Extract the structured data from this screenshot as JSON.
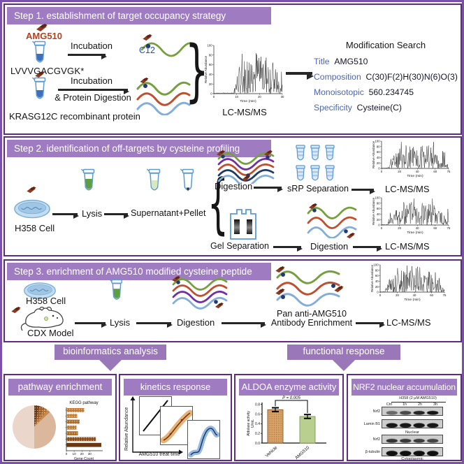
{
  "colors": {
    "banner_purple": "#9f7cc1",
    "box_border_purple": "#5e2c80",
    "outer_border_purple": "#7b50a8",
    "amg510_red": "#b5401c",
    "field_label_blue": "#4b67ae",
    "c12_blue": "#2b4fa3",
    "wave_green": "#76a03e",
    "wave_red": "#bf4f2e",
    "wave_blue": "#82aed8",
    "wave_purple": "#7030a0",
    "wave_navy": "#1f3a68",
    "vehicle_bar": "#d9a268",
    "amg510_bar": "#b8cf90"
  },
  "step1": {
    "title": "Step 1. establishment of target occupancy strategy",
    "amg510": "AMG510",
    "peptide": "LVVVGACGVGK*",
    "incubation1": "Incubation",
    "c12": "C12",
    "incubation2_line1": "Incubation",
    "incubation2_line2": "& Protein Digestion",
    "protein": "KRASG12C recombinant protein",
    "lcms": "LC-MS/MS",
    "mod_search": {
      "title": "Modification Search",
      "rows": [
        {
          "label": "Title",
          "value": "AMG510"
        },
        {
          "label": "Composition",
          "value": "C(30)F(2)H(30)N(6)O(3)"
        },
        {
          "label": "Monoisotopic",
          "value": "560.234745"
        },
        {
          "label": "Specificity",
          "value": "Cysteine(C)"
        }
      ]
    }
  },
  "step2": {
    "title": "Step 2. identification of off-targets by cysteine profiling",
    "cell": "H358 Cell",
    "lysis": "Lysis",
    "supernatant": "Supernatant+Pellet",
    "digestion_top": "Digestion",
    "srp": "sRP Separation",
    "lcms_top": "LC-MS/MS",
    "gel": "Gel Separation",
    "digestion_bottom": "Digestion",
    "lcms_bottom": "LC-MS/MS"
  },
  "step3": {
    "title": "Step 3. enrichment of AMG510 modified cysteine peptide",
    "cell": "H358 Cell",
    "cdx": "CDX Model",
    "lysis": "Lysis",
    "digestion": "Digestion",
    "enrichment_line1": "Pan anti-AMG510",
    "enrichment_line2": "Antibody Enrichment",
    "lcms": "LC-MS/MS"
  },
  "ribbons": {
    "left": "bioinformatics analysis",
    "right": "functional response"
  },
  "chromatograms": {
    "step1": {
      "ylabel": "Relative Abundance",
      "xlabel": "Time (min)",
      "xticks": [
        0,
        10,
        20,
        30
      ],
      "yticks": [
        0,
        20,
        40,
        60,
        80,
        100
      ],
      "seed": 7,
      "start": 0.3
    },
    "step2_top": {
      "ylabel": "Relative Abundance",
      "xlabel": "Time (min)",
      "xticks": [
        0,
        20,
        40,
        60,
        75
      ],
      "yticks": [
        0,
        20,
        40,
        60,
        80,
        100
      ],
      "seed": 11,
      "start": 0.1
    },
    "step2_bottom": {
      "ylabel": "Relative Abundance",
      "xlabel": "Time (min)",
      "xticks": [
        0,
        20,
        40,
        60,
        75
      ],
      "yticks": [
        0,
        20,
        40,
        60,
        80,
        100
      ],
      "seed": 23,
      "start": 0.1
    },
    "step3": {
      "ylabel": "Relative Abundance",
      "xlabel": "Time (min)",
      "xticks": [
        0,
        20,
        40,
        60,
        75
      ],
      "yticks": [
        0,
        20,
        40,
        60,
        80,
        100
      ],
      "seed": 31,
      "start": 0.08
    }
  },
  "panels": {
    "pathway": {
      "title": "pathway enrichment",
      "kegg": {
        "type": "bar",
        "title": "KEGG pathway",
        "xlabel": "Gene Count",
        "xticks": [
          0,
          10,
          20,
          30
        ],
        "values": [
          23,
          14,
          17,
          13,
          15,
          38,
          45
        ],
        "colors": [
          "#c07a35",
          "#c9812e",
          "#b06a24",
          "#c07a35",
          "#b06a24",
          "#8a4a16",
          "#6b3710"
        ]
      },
      "pie": {
        "type": "pie",
        "values": [
          4,
          4,
          3,
          2,
          37,
          50
        ],
        "colors": [
          "#6b3710",
          "#9c5a24",
          "#b5712f",
          "#c8894a",
          "#dbb89c",
          "#ead6cb"
        ]
      }
    },
    "kinetics": {
      "title": "kinetics response",
      "ylabel": "Relative Abundance",
      "xlabel": "AMG510 treat time"
    },
    "aldoa": {
      "title": "ALDOA enzyme activity",
      "p_value": "P = 0.005",
      "ylabel_line1": "Aldolase activity",
      "ylabel_line2": "U/mL",
      "yticks": [
        "0.0",
        "0.2",
        "0.4",
        "0.6",
        "0.8"
      ],
      "categories": [
        "Vehicle",
        "AMG510"
      ],
      "values": [
        0.69,
        0.55
      ],
      "errors": [
        0.04,
        0.04
      ]
    },
    "nrf2": {
      "title": "NRF2 nuclear accumulation",
      "header": "H358 (2 μM AMG510)",
      "lanes": [
        "Ctrl",
        "1h",
        "2h",
        "3h"
      ],
      "nuclear_row1": "Nrf2",
      "nuclear_row2": "Lamin B1",
      "nuclear_label": "Nuclear",
      "cyto_row1": "Nrf2",
      "cyto_row2": "β-tubulin",
      "cyto_label": "Cytoplasmic"
    }
  }
}
